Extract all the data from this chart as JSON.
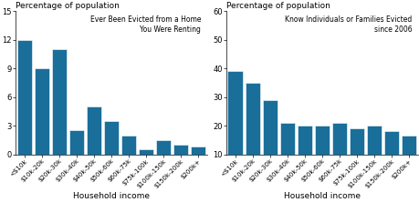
{
  "categories": [
    "<$10k",
    "$10k-20k",
    "$20k-30k",
    "$30k-40k",
    "$40k-50k",
    "$50k-60k",
    "$60k-75k",
    "$75k-100k",
    "$100k-150k",
    "$150k-200k",
    "$200k+"
  ],
  "left_values": [
    12.0,
    9.0,
    11.0,
    2.5,
    5.0,
    3.5,
    2.0,
    0.5,
    1.5,
    1.0,
    0.8
  ],
  "right_values": [
    39.0,
    35.0,
    29.0,
    21.0,
    20.0,
    20.0,
    21.0,
    19.0,
    20.0,
    18.0,
    16.5
  ],
  "left_title": "Ever Been Evicted from a Home\nYou Were Renting",
  "right_title": "Know Individuals or Families Evicted\nsince 2006",
  "ylabel": "Percentage of population",
  "xlabel": "Household income",
  "left_ylim": [
    0,
    15
  ],
  "right_ylim": [
    10,
    60
  ],
  "left_yticks": [
    0,
    3,
    6,
    9,
    12,
    15
  ],
  "right_yticks": [
    10,
    20,
    30,
    40,
    50,
    60
  ],
  "bar_color": "#1a6e9a",
  "bar_edge_color": "white",
  "fig_bg": "white"
}
